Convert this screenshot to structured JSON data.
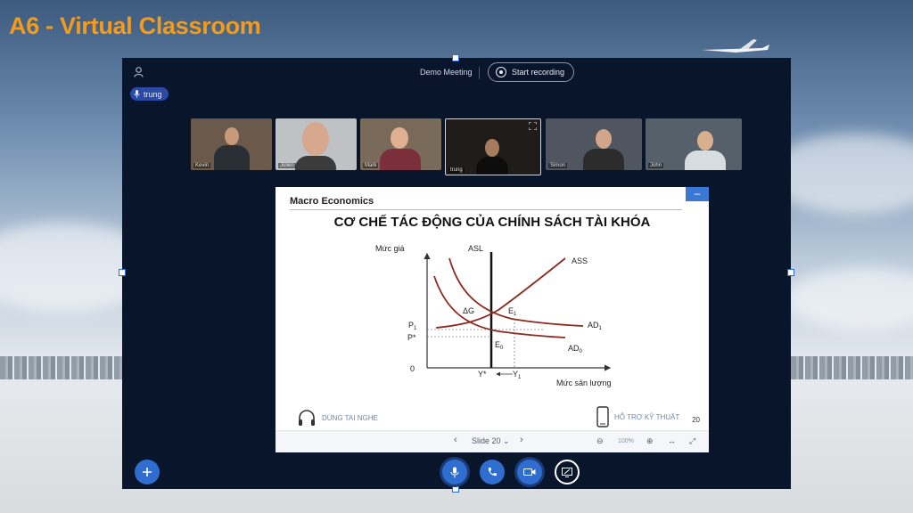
{
  "slide": {
    "title": "A6 -  Virtual Classroom"
  },
  "toolbar": {
    "meeting_name": "Demo Meeting",
    "record_label": "Start recording"
  },
  "user": {
    "name": "trung"
  },
  "videos": [
    {
      "tag": "Kevin"
    },
    {
      "tag": "Julien"
    },
    {
      "tag": "Mark"
    },
    {
      "tag": "trung"
    },
    {
      "tag": "Simon"
    },
    {
      "tag": "John"
    }
  ],
  "presentation": {
    "course": "Macro Economics",
    "heading": "CƠ CHẾ TÁC ĐỘNG CỦA CHÍNH SÁCH TÀI KHÓA",
    "graph": {
      "y_label": "Mức giá",
      "x_label": "Mức sản lượng",
      "origin": "0",
      "asl": "ASL",
      "ass": "ASS",
      "ad1": "AD",
      "ad1_sub": "1",
      "ad0": "AD",
      "ad0_sub": "0",
      "e1": "E",
      "e1_sub": "1",
      "e0": "E",
      "e0_sub": "0",
      "delta_g": "ΔG",
      "p1": "P",
      "p1_sub": "1",
      "pstar": "P*",
      "ystar": "Y*",
      "y1": "Y",
      "y1_sub": "1"
    },
    "headphones_note": "DÙNG TAI NGHE",
    "support_note": "HỖ TRỢ KỸ THUẬT",
    "page_number": "20",
    "slide_selector": "Slide 20",
    "zoom": "100%"
  },
  "colors": {
    "accent": "#f39b1c",
    "app_bg": "#09152a",
    "button_blue": "#2f6dd1",
    "curve": "#8b2a1e"
  }
}
